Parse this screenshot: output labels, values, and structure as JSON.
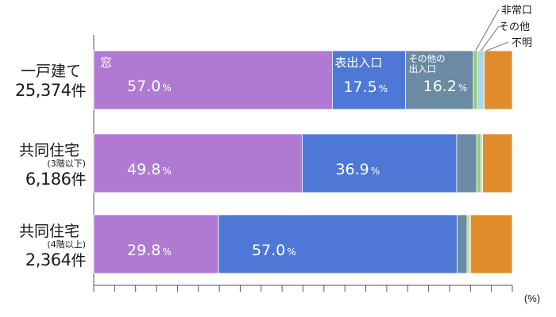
{
  "chart_data": {
    "type": "bar",
    "orientation": "horizontal",
    "stacked": true,
    "unit_label": "(%)",
    "percent_sign": "%",
    "xlim": [
      0,
      100
    ],
    "xtick_step": 5,
    "categories": [
      {
        "name": "一戸建て",
        "note": "",
        "count": "25,374",
        "count_unit": "件"
      },
      {
        "name": "共同住宅",
        "note": "(3階以下)",
        "count": "6,186",
        "count_unit": "件"
      },
      {
        "name": "共同住宅",
        "note": "(4階以上)",
        "count": "2,364",
        "count_unit": "件"
      }
    ],
    "series": [
      {
        "name": "窓",
        "color": "#B07AD3",
        "values": [
          57.0,
          49.8,
          29.8
        ],
        "shown": [
          true,
          true,
          true
        ]
      },
      {
        "name": "表出入口",
        "color": "#4F78D6",
        "values": [
          17.5,
          36.9,
          57.0
        ],
        "shown": [
          true,
          true,
          true
        ]
      },
      {
        "name": "その他の出入口",
        "name_lines": [
          "その他の",
          "出入口"
        ],
        "color": "#6B8BA4",
        "values": [
          16.2,
          4.8,
          2.4
        ],
        "shown": [
          true,
          false,
          false
        ]
      },
      {
        "name": "非常口",
        "color": "#93CE74",
        "values": [
          1.0,
          1.0,
          0.5
        ],
        "shown": [
          false,
          false,
          false
        ]
      },
      {
        "name": "その他",
        "color": "#A8D8EA",
        "values": [
          1.6,
          0.4,
          0.3
        ],
        "shown": [
          false,
          false,
          false
        ]
      },
      {
        "name": "不明",
        "color": "#E08C2B",
        "values": [
          6.7,
          7.1,
          10.0
        ],
        "shown": [
          false,
          false,
          false
        ]
      }
    ],
    "segment_labels_on_first_bar": [
      0,
      1,
      2
    ],
    "callouts": [
      "非常口",
      "その他",
      "不明"
    ]
  }
}
